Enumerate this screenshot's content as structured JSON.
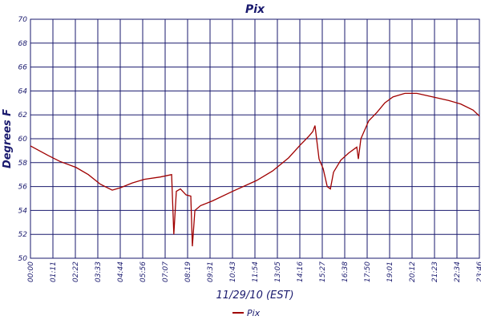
{
  "chart_data": {
    "type": "line",
    "title": "Pix",
    "x_label": "11/29/10 (EST)",
    "y_label": "Degrees F",
    "x": [
      0,
      56,
      94,
      145,
      184,
      222,
      260,
      286,
      324,
      362,
      413,
      449,
      456,
      464,
      477,
      495,
      510,
      515,
      523,
      541,
      579,
      643,
      719,
      770,
      821,
      859,
      885,
      898,
      905,
      918,
      931,
      944,
      954,
      964,
      987,
      1012,
      1038,
      1043,
      1051,
      1076,
      1102,
      1127,
      1153,
      1191,
      1229,
      1280,
      1331,
      1369,
      1408,
      1428
    ],
    "series": [
      {
        "name": "Pix",
        "color": "#a00000",
        "values": [
          59.4,
          58.6,
          58.1,
          57.6,
          57.0,
          56.2,
          55.7,
          55.9,
          56.3,
          56.6,
          56.8,
          57.0,
          52.0,
          55.6,
          55.8,
          55.3,
          55.2,
          51.0,
          54.0,
          54.4,
          54.8,
          55.6,
          56.5,
          57.3,
          58.4,
          59.5,
          60.2,
          60.6,
          61.1,
          58.3,
          57.5,
          56.0,
          55.8,
          57.2,
          58.2,
          58.8,
          59.3,
          58.3,
          60.0,
          61.5,
          62.2,
          63.0,
          63.5,
          63.8,
          63.8,
          63.5,
          63.2,
          62.9,
          62.4,
          61.9
        ]
      }
    ],
    "xlim": [
      0,
      1428
    ],
    "xticks": [
      {
        "value": 0,
        "label": "00:00"
      },
      {
        "value": 71.4,
        "label": "01:11"
      },
      {
        "value": 142.8,
        "label": "02:22"
      },
      {
        "value": 214.2,
        "label": "03:33"
      },
      {
        "value": 285.6,
        "label": "04:44"
      },
      {
        "value": 357,
        "label": "05:56"
      },
      {
        "value": 428.4,
        "label": "07:07"
      },
      {
        "value": 499.8,
        "label": "08:19"
      },
      {
        "value": 571.2,
        "label": "09:31"
      },
      {
        "value": 642.6,
        "label": "10:43"
      },
      {
        "value": 714,
        "label": "11:54"
      },
      {
        "value": 785.4,
        "label": "13:05"
      },
      {
        "value": 856.8,
        "label": "14:16"
      },
      {
        "value": 928.2,
        "label": "15:27"
      },
      {
        "value": 999.6,
        "label": "16:38"
      },
      {
        "value": 1071,
        "label": "17:50"
      },
      {
        "value": 1142.4,
        "label": "19:01"
      },
      {
        "value": 1213.8,
        "label": "20:12"
      },
      {
        "value": 1285.2,
        "label": "21:23"
      },
      {
        "value": 1356.6,
        "label": "22:34"
      },
      {
        "value": 1428,
        "label": "23:46"
      }
    ],
    "ylim": [
      50,
      70
    ],
    "yticks": [
      50,
      52,
      54,
      56,
      58,
      60,
      62,
      64,
      66,
      68,
      70
    ],
    "grid": true
  }
}
